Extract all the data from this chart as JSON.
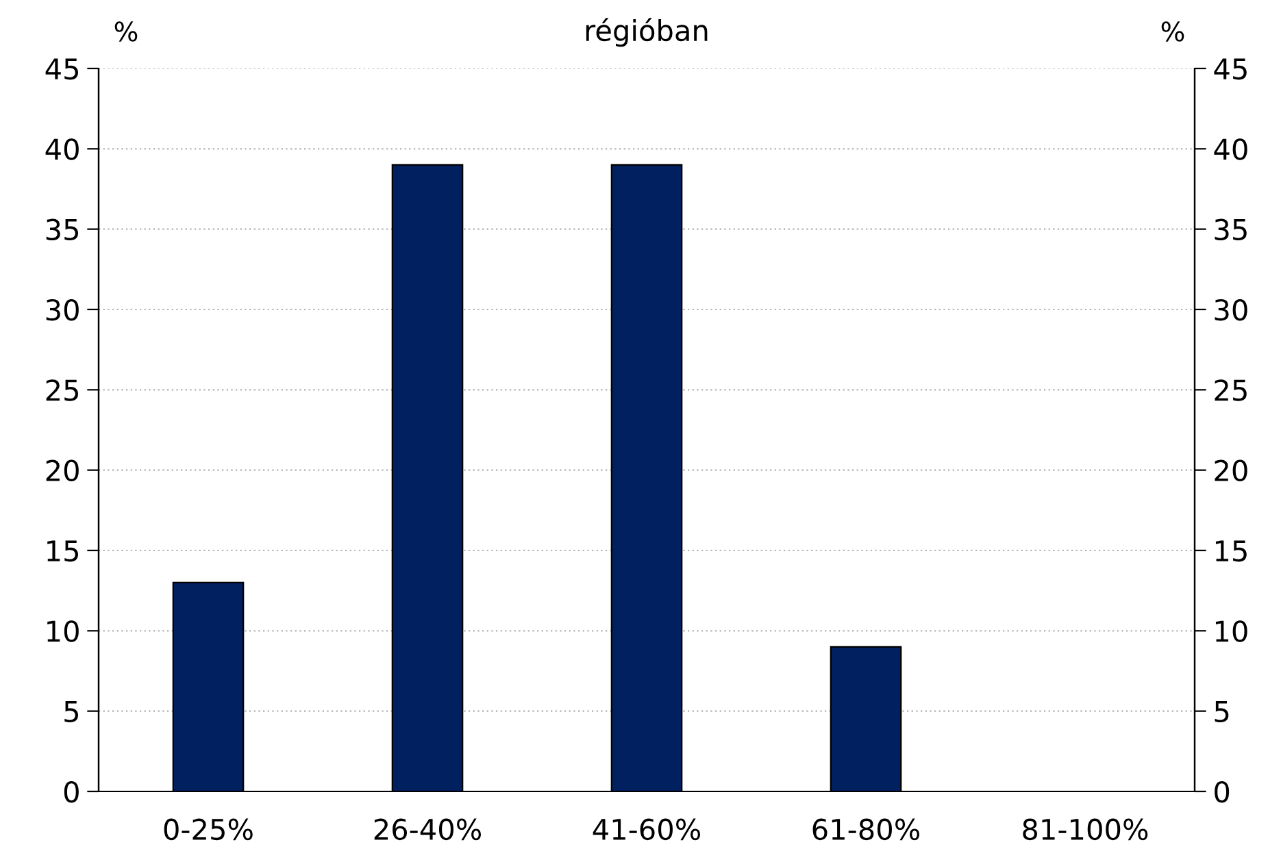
{
  "chart_data": {
    "type": "bar",
    "title": "régióban",
    "ylabel": "%",
    "y2label": "%",
    "categories": [
      "0-25%",
      "26-40%",
      "41-60%",
      "61-80%",
      "81-100%"
    ],
    "values": [
      13,
      39,
      39,
      9,
      0
    ],
    "color": "#002060",
    "ylim": [
      0,
      45
    ],
    "yticks": [
      0,
      5,
      10,
      15,
      20,
      25,
      30,
      35,
      40,
      45
    ],
    "y2lim": [
      0,
      45
    ],
    "y2ticks": [
      0,
      5,
      10,
      15,
      20,
      25,
      30,
      35,
      40,
      45
    ],
    "grid": "y",
    "legend": false
  }
}
